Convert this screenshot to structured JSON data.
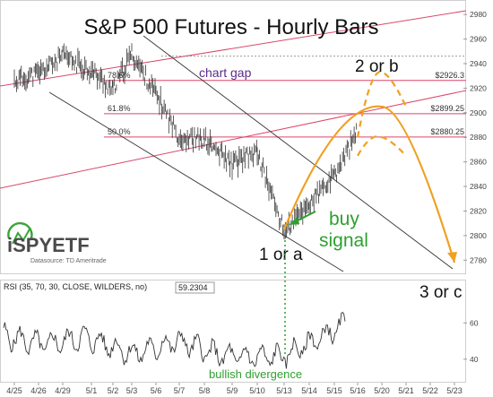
{
  "chart_data": [
    {
      "type": "ohlc",
      "title": "S&P 500 Futures - Hourly Bars",
      "ylim": [
        2770,
        2985
      ],
      "y_ticks": [
        2780,
        2800,
        2820,
        2840,
        2860,
        2880,
        2900,
        2920,
        2940,
        2960,
        2980
      ],
      "x_ticks": [
        "4/25",
        "4/26",
        "4/29",
        "5/1",
        "5/2",
        "5/3",
        "5/6",
        "5/7",
        "5/8",
        "5/9",
        "5/10",
        "5/13",
        "5/14",
        "5/15",
        "5/16",
        "5/20",
        "5/21",
        "5/22",
        "5/23"
      ],
      "price_path": [
        [
          "4/25",
          2926
        ],
        [
          "4/26",
          2932
        ],
        [
          "4/29",
          2946
        ],
        [
          "5/1",
          2934
        ],
        [
          "5/2",
          2918
        ],
        [
          "5/3",
          2948
        ],
        [
          "5/6",
          2915
        ],
        [
          "5/7",
          2880
        ],
        [
          "5/8",
          2878
        ],
        [
          "5/9",
          2858
        ],
        [
          "5/10",
          2868
        ],
        [
          "5/13",
          2803
        ],
        [
          "5/14",
          2826
        ],
        [
          "5/15",
          2848
        ],
        [
          "5/16",
          2885
        ]
      ],
      "fib_levels": [
        {
          "ratio": "78.6%",
          "price": 2926.3,
          "label": "$2926.3"
        },
        {
          "ratio": "61.8%",
          "price": 2899.25,
          "label": "$2899.25"
        },
        {
          "ratio": "50.0%",
          "price": 2880.25,
          "label": "$2880.25"
        }
      ],
      "projections": [
        {
          "style": "solid",
          "path": [
            [
              "5/13",
              2805
            ],
            [
              "5/20",
              2905
            ],
            [
              "5/23",
              2778
            ]
          ]
        },
        {
          "style": "dashed",
          "path": [
            [
              "5/16",
              2880
            ],
            [
              "5/20",
              2933
            ],
            [
              "5/21",
              2905
            ]
          ]
        },
        {
          "style": "dashed",
          "path": [
            [
              "5/16",
              2865
            ],
            [
              "5/20",
              2880
            ],
            [
              "5/21",
              2865
            ]
          ]
        }
      ],
      "annotations": [
        {
          "text": "chart gap"
        },
        {
          "text": "2 or b"
        },
        {
          "text": "buy"
        },
        {
          "text": "signal"
        },
        {
          "text": "1 or a"
        },
        {
          "text": "3 or c"
        }
      ],
      "logo": {
        "text": "iSPYETF",
        "subtext": "Datasource: TD Ameritrade"
      },
      "colors": {
        "price": "#333333",
        "channel": "#333333",
        "fib": "#d9476a",
        "projection": "#f0a020",
        "buy_signal": "#2ea02e",
        "annotation": "#5a2a8a",
        "logo_green": "#3aa43a"
      }
    },
    {
      "type": "line",
      "title": "RSI (35, 70, 30, CLOSE, WILDERS, no)",
      "value_label": "59.2304",
      "ylim": [
        30,
        75
      ],
      "y_ticks": [
        40,
        60
      ],
      "annotations": [
        {
          "text": "bullish divergence"
        }
      ],
      "colors": {
        "line": "#333333",
        "divergence": "#2ea02e"
      }
    }
  ]
}
